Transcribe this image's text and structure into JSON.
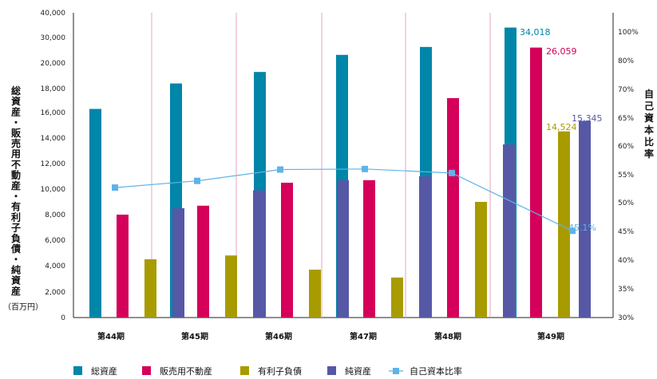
{
  "chart_data": {
    "type": "bar",
    "categories": [
      "第44期",
      "第45期",
      "第46期",
      "第47期",
      "第48期",
      "第49期"
    ],
    "left_axis": {
      "label": "総資産・販売用不動産・有利子負債・純資産",
      "unit": "（百万円）",
      "ticks": [
        "40,000",
        "30,000",
        "20,000",
        "18,000",
        "16,000",
        "14,000",
        "12,000",
        "10,000",
        "8,000",
        "6,000",
        "4,000",
        "2,000",
        "0"
      ],
      "tick_values": [
        40000,
        30000,
        20000,
        18000,
        16000,
        14000,
        12000,
        10000,
        8000,
        6000,
        4000,
        2000,
        0
      ],
      "note": "non-linear broken scale: linear 0-20,000, then 20,000-40,000 compressed"
    },
    "right_axis": {
      "label": "自己資本比率",
      "ticks": [
        "100%",
        "80%",
        "70%",
        "65%",
        "60%",
        "55%",
        "50%",
        "45%",
        "40%",
        "35%",
        "30%"
      ],
      "tick_values": [
        100,
        80,
        70,
        65,
        60,
        55,
        50,
        45,
        40,
        35,
        30
      ]
    },
    "series": [
      {
        "name": "総資産",
        "color": "#0086a8",
        "values": [
          16300,
          18400,
          19300,
          23200,
          26300,
          34018
        ]
      },
      {
        "name": "販売用不動産",
        "color": "#d4005a",
        "values": [
          8000,
          8700,
          10500,
          10700,
          17200,
          26059
        ]
      },
      {
        "name": "有利子負債",
        "color": "#a89b00",
        "values": [
          4500,
          4800,
          3700,
          3100,
          9000,
          14524
        ]
      },
      {
        "name": "純資産",
        "color": "#5658a6",
        "values": [
          8500,
          9900,
          10700,
          11000,
          13500,
          15345
        ]
      }
    ],
    "line_series": {
      "name": "自己資本比率",
      "color": "#5fb3e8",
      "values": [
        52.7,
        53.9,
        55.9,
        56.0,
        55.3,
        45.1
      ]
    },
    "value_labels": [
      {
        "series": 0,
        "index": 5,
        "text": "34,018"
      },
      {
        "series": 1,
        "index": 5,
        "text": "26,059"
      },
      {
        "series": 2,
        "index": 5,
        "text": "14,524"
      },
      {
        "series": 3,
        "index": 5,
        "text": "15,345"
      },
      {
        "line": true,
        "index": 5,
        "text": "45.1%"
      }
    ],
    "grid": "vertical dividers between categories"
  }
}
